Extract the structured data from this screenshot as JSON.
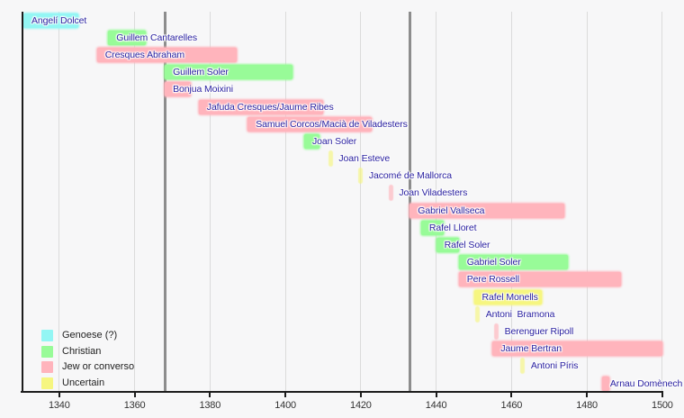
{
  "chart_data": {
    "type": "bar",
    "variant": "horizontal-timeline",
    "title": "",
    "xlabel": "",
    "ylabel": "",
    "x_axis": {
      "min": 1330,
      "max": 1502,
      "tick_start": 1340,
      "tick_end": 1500,
      "tick_step": 20,
      "tick_labels": [
        "1340",
        "1360",
        "1380",
        "1400",
        "1420",
        "1440",
        "1460",
        "1480",
        "1500"
      ]
    },
    "grid": true,
    "reference_lines": [
      {
        "year": 1368
      },
      {
        "year": 1433
      }
    ],
    "legend_position": "bottom-left",
    "legend": [
      {
        "key": "genoese",
        "label": "Genoese (?)",
        "color": "#93f6f4"
      },
      {
        "key": "christian",
        "label": "Christian",
        "color": "#98fb98"
      },
      {
        "key": "jew",
        "label": "Jew or converso",
        "color": "#ffb4bc"
      },
      {
        "key": "uncertain",
        "label": "Uncertain",
        "color": "#f6f680"
      }
    ],
    "series": [
      {
        "name": "Angelí Dolcet",
        "group": "genoese",
        "start": 1330,
        "end": 1345,
        "clipped_start": true
      },
      {
        "name": "Guillem Cantarelles",
        "group": "christian",
        "start": 1353,
        "end": 1363
      },
      {
        "name": "Cresques Abraham",
        "group": "jew",
        "start": 1350,
        "end": 1387
      },
      {
        "name": "Guillem Soler",
        "group": "christian",
        "start": 1368,
        "end": 1402
      },
      {
        "name": "Bonjua Moixini",
        "group": "jew",
        "start": 1368,
        "end": 1375
      },
      {
        "name": "Jafuda Cresques/Jaume Ribes",
        "group": "jew",
        "start": 1377,
        "end": 1410
      },
      {
        "name": "Samuel Corcos/Macià de Viladesters",
        "group": "jew",
        "start": 1390,
        "end": 1423
      },
      {
        "name": "Joan Soler",
        "group": "christian",
        "start": 1405,
        "end": 1409
      },
      {
        "name": "Joan Esteve",
        "group": "uncertain",
        "start": 1412,
        "end": 1412
      },
      {
        "name": "Jacomé de Mallorca",
        "group": "uncertain",
        "start": 1420,
        "end": 1420
      },
      {
        "name": "Joan Viladesters",
        "group": "jew",
        "start": 1428,
        "end": 1428
      },
      {
        "name": "Gabriel Vallseca",
        "group": "jew",
        "start": 1433,
        "end": 1474
      },
      {
        "name": "Rafel Lloret",
        "group": "christian",
        "start": 1436,
        "end": 1442
      },
      {
        "name": "Rafel Soler",
        "group": "christian",
        "start": 1440,
        "end": 1446
      },
      {
        "name": "Gabriel Soler",
        "group": "christian",
        "start": 1446,
        "end": 1475
      },
      {
        "name": "Pere Rossell",
        "group": "jew",
        "start": 1446,
        "end": 1489
      },
      {
        "name": "Rafel Monells",
        "group": "uncertain",
        "start": 1450,
        "end": 1468
      },
      {
        "name": "Antoni  Bramona",
        "group": "uncertain",
        "start": 1451,
        "end": 1451
      },
      {
        "name": "Berenguer Ripoll",
        "group": "jew",
        "start": 1456,
        "end": 1456
      },
      {
        "name": "Jaume Bertran",
        "group": "jew",
        "start": 1455,
        "end": 1500
      },
      {
        "name": "Antoni Píris",
        "group": "uncertain",
        "start": 1463,
        "end": 1463
      },
      {
        "name": "Arnau Domènech",
        "group": "jew",
        "start": 1484,
        "end": 1486
      }
    ],
    "colors": {
      "background": "#f7f7f8",
      "axis": "#1c1c1c",
      "gridline": "#dbdbdb",
      "reference_line": "#8d8d8d",
      "bar_label_text": "#2b22a1",
      "tick_label_text": "#333333",
      "legend_text": "#222222"
    }
  }
}
